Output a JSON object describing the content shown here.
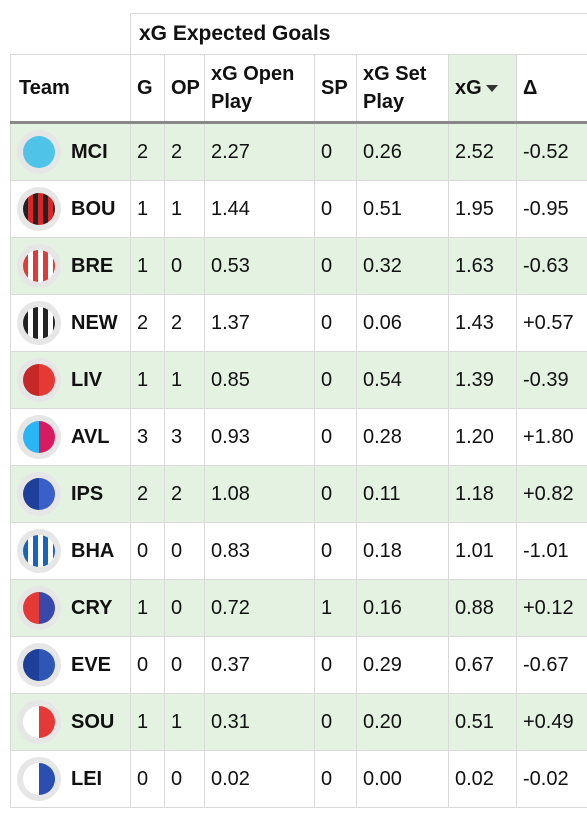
{
  "table": {
    "group_header": "xG Expected Goals",
    "columns": {
      "team": "Team",
      "g": "G",
      "op": "OP",
      "xg_open": "xG Open Play",
      "sp": "SP",
      "xg_set": "xG Set Play",
      "xg": "xG",
      "delta": "Δ"
    },
    "sorted_column": "xG",
    "sort_direction": "descending",
    "rows": [
      {
        "team": "MCI",
        "g": "2",
        "op": "2",
        "xg_open": "2.27",
        "sp": "0",
        "xg_set": "0.26",
        "xg": "2.52",
        "delta": "-0.52",
        "badge": {
          "style": "solid",
          "colors": [
            "#4fc3e8"
          ]
        }
      },
      {
        "team": "BOU",
        "g": "1",
        "op": "1",
        "xg_open": "1.44",
        "sp": "0",
        "xg_set": "0.51",
        "xg": "1.95",
        "delta": "-0.95",
        "badge": {
          "style": "stripes",
          "colors": [
            "#222222",
            "#d8262a"
          ]
        }
      },
      {
        "team": "BRE",
        "g": "1",
        "op": "0",
        "xg_open": "0.53",
        "sp": "0",
        "xg_set": "0.32",
        "xg": "1.63",
        "delta": "-0.63",
        "badge": {
          "style": "stripes",
          "colors": [
            "#e53935",
            "#ffffff"
          ]
        }
      },
      {
        "team": "NEW",
        "g": "2",
        "op": "2",
        "xg_open": "1.37",
        "sp": "0",
        "xg_set": "0.06",
        "xg": "1.43",
        "delta": "+0.57",
        "badge": {
          "style": "stripes",
          "colors": [
            "#222222",
            "#ffffff"
          ]
        }
      },
      {
        "team": "LIV",
        "g": "1",
        "op": "1",
        "xg_open": "0.85",
        "sp": "0",
        "xg_set": "0.54",
        "xg": "1.39",
        "delta": "-0.39",
        "badge": {
          "style": "half",
          "colors": [
            "#c62828",
            "#e53935"
          ]
        }
      },
      {
        "team": "AVL",
        "g": "3",
        "op": "3",
        "xg_open": "0.93",
        "sp": "0",
        "xg_set": "0.28",
        "xg": "1.20",
        "delta": "+1.80",
        "badge": {
          "style": "half",
          "colors": [
            "#29b6f6",
            "#d81b60"
          ]
        }
      },
      {
        "team": "IPS",
        "g": "2",
        "op": "2",
        "xg_open": "1.08",
        "sp": "0",
        "xg_set": "0.11",
        "xg": "1.18",
        "delta": "+0.82",
        "badge": {
          "style": "half",
          "colors": [
            "#1e3f9a",
            "#3a5fc8"
          ]
        }
      },
      {
        "team": "BHA",
        "g": "0",
        "op": "0",
        "xg_open": "0.83",
        "sp": "0",
        "xg_set": "0.18",
        "xg": "1.01",
        "delta": "-1.01",
        "badge": {
          "style": "stripes",
          "colors": [
            "#1565c0",
            "#ffffff"
          ]
        }
      },
      {
        "team": "CRY",
        "g": "1",
        "op": "0",
        "xg_open": "0.72",
        "sp": "1",
        "xg_set": "0.16",
        "xg": "0.88",
        "delta": "+0.12",
        "badge": {
          "style": "half",
          "colors": [
            "#e53935",
            "#3949ab"
          ]
        }
      },
      {
        "team": "EVE",
        "g": "0",
        "op": "0",
        "xg_open": "0.37",
        "sp": "0",
        "xg_set": "0.29",
        "xg": "0.67",
        "delta": "-0.67",
        "badge": {
          "style": "half",
          "colors": [
            "#1e3f9a",
            "#2f55b5"
          ]
        }
      },
      {
        "team": "SOU",
        "g": "1",
        "op": "1",
        "xg_open": "0.31",
        "sp": "0",
        "xg_set": "0.20",
        "xg": "0.51",
        "delta": "+0.49",
        "badge": {
          "style": "half",
          "colors": [
            "#ffffff",
            "#e53935"
          ]
        }
      },
      {
        "team": "LEI",
        "g": "0",
        "op": "0",
        "xg_open": "0.02",
        "sp": "0",
        "xg_set": "0.00",
        "xg": "0.02",
        "delta": "-0.02",
        "badge": {
          "style": "half",
          "colors": [
            "#ffffff",
            "#2a4fb0"
          ]
        }
      }
    ]
  }
}
